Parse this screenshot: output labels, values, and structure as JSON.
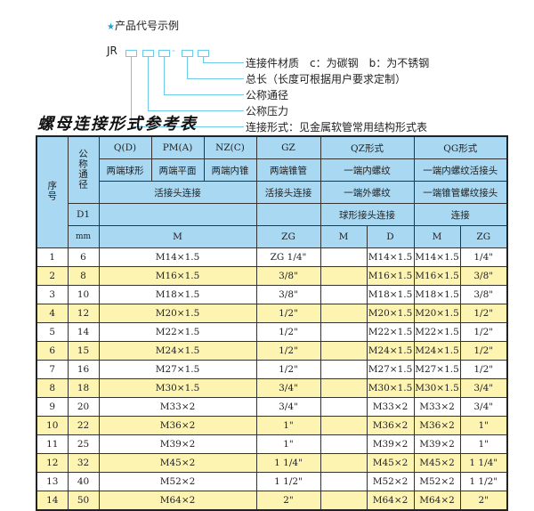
{
  "example": {
    "title": "产品代号示例",
    "code_prefix": "JR",
    "code_separator": "-",
    "descriptions": [
      "连接件材质　c：为碳钢　b：为不锈钢",
      "总长（长度可根据用户要求定制）",
      "公称通径",
      "公称压力",
      "连接形式：见金属软管常用结构形式表"
    ]
  },
  "table_title": "螺母连接形式参考表",
  "header": {
    "seq": "序号",
    "nominal": "公称通径",
    "d1": "D1",
    "mm": "mm",
    "q": "Q(D)",
    "pm": "PM(A)",
    "nz": "NZ(C)",
    "gz": "GZ",
    "qz": "QZ形式",
    "qg": "QG形式",
    "q_desc": "两端球形",
    "pm_desc": "两端平面",
    "nz_desc": "两端内锥",
    "gz_desc": "两端锥管",
    "qz_desc1": "一端内螺纹",
    "qg_desc1": "一端内螺纹活接头",
    "union1": "活接头连接",
    "union2": "活接头连接",
    "qz_desc2": "一端外螺纹",
    "qg_desc2": "一端锥管螺纹接头",
    "qz_desc3": "球形接头连接",
    "qg_desc3": "连接",
    "m": "M",
    "zg": "ZG",
    "qz_m": "M",
    "qz_d": "D",
    "qg_m": "M",
    "qg_zg": "ZG"
  },
  "rows": [
    {
      "no": "1",
      "d1": "6",
      "m": "M14×1.5",
      "zg": "ZG 1/4\"",
      "qz_m": "",
      "qz_d": "M14×1.5",
      "qg_m": "M14×1.5",
      "qg_zg": "1/4\""
    },
    {
      "no": "2",
      "d1": "8",
      "m": "M16×1.5",
      "zg": "3/8\"",
      "qz_m": "",
      "qz_d": "M16×1.5",
      "qg_m": "M16×1.5",
      "qg_zg": "3/8\""
    },
    {
      "no": "3",
      "d1": "10",
      "m": "M18×1.5",
      "zg": "3/8\"",
      "qz_m": "",
      "qz_d": "M18×1.5",
      "qg_m": "M18×1.5",
      "qg_zg": "3/8\""
    },
    {
      "no": "4",
      "d1": "12",
      "m": "M20×1.5",
      "zg": "1/2\"",
      "qz_m": "",
      "qz_d": "M20×1.5",
      "qg_m": "M20×1.5",
      "qg_zg": "1/2\""
    },
    {
      "no": "5",
      "d1": "14",
      "m": "M22×1.5",
      "zg": "1/2\"",
      "qz_m": "",
      "qz_d": "M22×1.5",
      "qg_m": "M22×1.5",
      "qg_zg": "1/2\""
    },
    {
      "no": "6",
      "d1": "15",
      "m": "M24×1.5",
      "zg": "1/2\"",
      "qz_m": "",
      "qz_d": "M24×1.5",
      "qg_m": "M24×1.5",
      "qg_zg": "1/2\""
    },
    {
      "no": "7",
      "d1": "16",
      "m": "M27×1.5",
      "zg": "1/2\"",
      "qz_m": "",
      "qz_d": "M27×1.5",
      "qg_m": "M27×1.5",
      "qg_zg": "1/2\""
    },
    {
      "no": "8",
      "d1": "18",
      "m": "M30×1.5",
      "zg": "3/4\"",
      "qz_m": "",
      "qz_d": "M30×1.5",
      "qg_m": "M30×1.5",
      "qg_zg": "3/4\""
    },
    {
      "no": "9",
      "d1": "20",
      "m": "M33×2",
      "zg": "3/4\"",
      "qz_m": "",
      "qz_d": "M33×2",
      "qg_m": "M33×2",
      "qg_zg": "3/4\""
    },
    {
      "no": "10",
      "d1": "22",
      "m": "M36×2",
      "zg": "1\"",
      "qz_m": "",
      "qz_d": "M36×2",
      "qg_m": "M36×2",
      "qg_zg": "1\""
    },
    {
      "no": "11",
      "d1": "25",
      "m": "M39×2",
      "zg": "1\"",
      "qz_m": "",
      "qz_d": "M39×2",
      "qg_m": "M39×2",
      "qg_zg": "1\""
    },
    {
      "no": "12",
      "d1": "32",
      "m": "M45×2",
      "zg": "1 1/4\"",
      "qz_m": "",
      "qz_d": "M45×2",
      "qg_m": "M45×2",
      "qg_zg": "1 1/4\""
    },
    {
      "no": "13",
      "d1": "40",
      "m": "M52×2",
      "zg": "1 1/2\"",
      "qz_m": "",
      "qz_d": "M52×2",
      "qg_m": "M52×2",
      "qg_zg": "1 1/2\""
    },
    {
      "no": "14",
      "d1": "50",
      "m": "M64×2",
      "zg": "2\"",
      "qz_m": "",
      "qz_d": "M64×2",
      "qg_m": "M64×2",
      "qg_zg": "2\""
    }
  ],
  "colors": {
    "header_bg": "#a9d8f2",
    "alt_row_bg": "#fdf4b2",
    "accent": "#1aa0d8"
  }
}
